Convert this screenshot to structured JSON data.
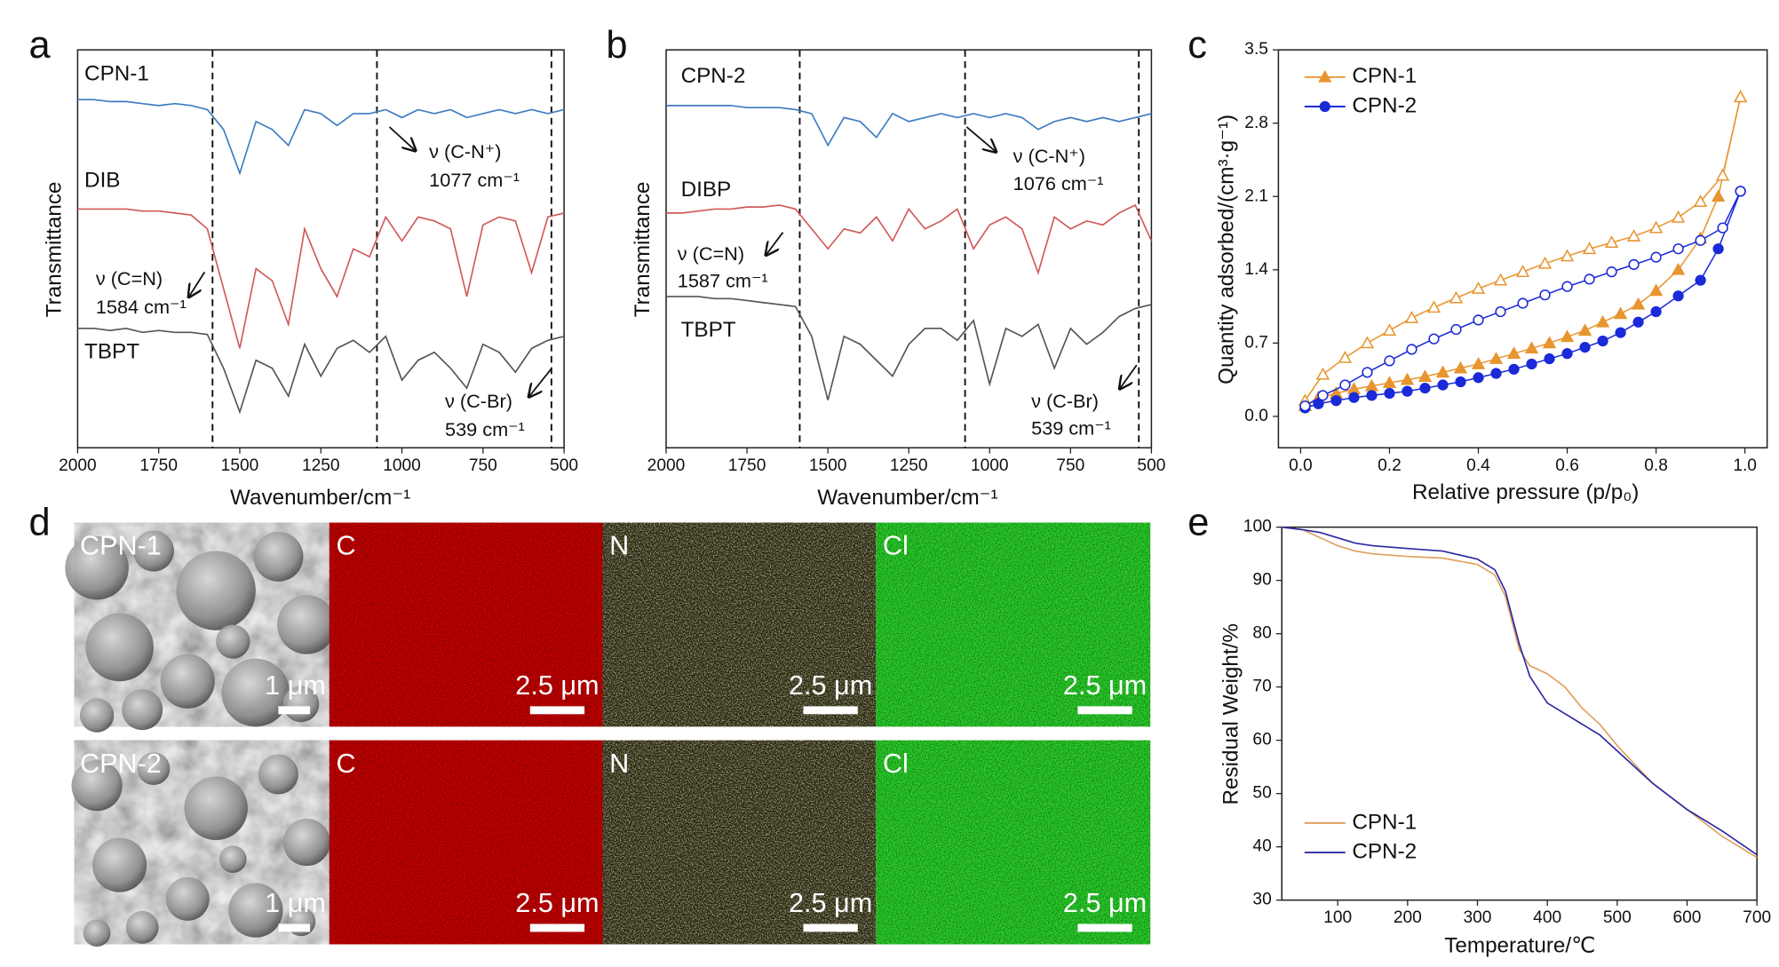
{
  "chart_data": [
    {
      "type": "line",
      "label": "a",
      "xlabel": "Wavenumber/cm⁻¹",
      "ylabel": "Transmittance",
      "xlim": [
        2000,
        500
      ],
      "xticks": [
        2000,
        1750,
        1500,
        1250,
        1000,
        750,
        500
      ],
      "ylim": [
        0,
        100
      ],
      "x": [
        2000,
        1950,
        1900,
        1850,
        1800,
        1750,
        1700,
        1650,
        1600,
        1550,
        1500,
        1450,
        1400,
        1350,
        1300,
        1250,
        1200,
        1150,
        1100,
        1050,
        1000,
        950,
        900,
        850,
        800,
        750,
        700,
        650,
        600,
        550,
        500
      ],
      "series": [
        {
          "name": "CPN-1",
          "color": "#3d7cc0",
          "values": [
            87.5,
            87.5,
            87,
            87,
            86.5,
            86,
            86.5,
            86,
            85,
            80,
            69,
            82,
            80,
            76,
            85,
            84,
            81,
            84,
            84,
            85,
            83,
            85,
            84,
            85,
            83,
            84,
            85,
            84,
            85,
            84,
            85
          ]
        },
        {
          "name": "DIB",
          "color": "#d05a5a",
          "values": [
            60,
            60,
            60,
            60,
            59.5,
            59.5,
            59,
            58.5,
            55,
            40,
            25,
            45,
            42,
            31,
            55,
            45,
            38,
            50,
            48,
            58,
            52,
            58,
            57,
            55,
            38,
            56,
            58,
            57,
            44,
            58,
            59
          ]
        },
        {
          "name": "TBPT",
          "color": "#555555",
          "values": [
            30,
            30,
            29.5,
            30,
            29,
            29.5,
            29,
            29,
            28.5,
            20,
            9,
            22,
            20,
            13,
            26,
            18,
            25,
            27,
            24,
            28,
            17,
            22,
            24,
            20,
            15,
            26,
            24,
            19,
            25,
            27,
            28
          ]
        }
      ],
      "vlines": [
        1584,
        1077,
        539
      ],
      "annotations": [
        [
          "ν (C-N⁺)",
          "1077 cm⁻¹"
        ],
        [
          "ν (C=N)",
          "1584 cm⁻¹"
        ],
        [
          "ν (C-Br)",
          "539 cm⁻¹"
        ]
      ]
    },
    {
      "type": "line",
      "label": "b",
      "xlabel": "Wavenumber/cm⁻¹",
      "ylabel": "Transmittance",
      "xlim": [
        2000,
        500
      ],
      "xticks": [
        2000,
        1750,
        1500,
        1250,
        1000,
        750,
        500
      ],
      "ylim": [
        0,
        100
      ],
      "x": [
        2000,
        1950,
        1900,
        1850,
        1800,
        1750,
        1700,
        1650,
        1600,
        1550,
        1500,
        1450,
        1400,
        1350,
        1300,
        1250,
        1200,
        1150,
        1100,
        1050,
        1000,
        950,
        900,
        850,
        800,
        750,
        700,
        650,
        600,
        550,
        500
      ],
      "series": [
        {
          "name": "CPN-2",
          "color": "#3d7cc0",
          "values": [
            86,
            86,
            86,
            86,
            86,
            85.5,
            85.5,
            85.5,
            85,
            84,
            76,
            83,
            82,
            78,
            84,
            82,
            83,
            84,
            83,
            84,
            83,
            84,
            83,
            80,
            82,
            83,
            82,
            83,
            82,
            83,
            84
          ]
        },
        {
          "name": "DIBP",
          "color": "#d05a5a",
          "values": [
            59,
            59,
            59.5,
            60,
            60,
            60.5,
            60.5,
            61,
            60,
            55,
            50,
            55,
            54,
            58,
            52,
            60,
            55,
            57,
            60,
            50,
            56,
            58,
            55,
            44,
            58,
            55,
            57,
            56,
            59,
            61,
            52
          ]
        },
        {
          "name": "TBPT",
          "color": "#555555",
          "values": [
            38,
            38,
            38,
            37.5,
            37.5,
            37,
            36.5,
            36,
            35.5,
            28,
            12,
            28,
            26,
            22,
            18,
            26,
            30,
            30,
            27,
            32,
            16,
            30,
            28,
            31,
            20,
            30,
            26,
            29,
            33,
            35,
            36
          ]
        }
      ],
      "vlines": [
        1587,
        1076,
        539
      ],
      "annotations": [
        [
          "ν (C-N⁺)",
          "1076 cm⁻¹"
        ],
        [
          "ν (C=N)",
          "1587 cm⁻¹"
        ],
        [
          "ν (C-Br)",
          "539 cm⁻¹"
        ]
      ]
    },
    {
      "type": "scatter",
      "label": "c",
      "xlabel": "Relative pressure (p/p₀)",
      "ylabel": "Quantity adsorbed/(cm³·g⁻¹)",
      "xlim": [
        -0.05,
        1.05
      ],
      "xticks": [
        {
          "value": 0,
          "label": "0.0"
        },
        0.2,
        0.4,
        0.6,
        0.8,
        {
          "value": 1,
          "label": "1.0"
        }
      ],
      "ylim": [
        -0.3,
        3.5
      ],
      "yticks": [
        {
          "value": 0,
          "label": "0.0"
        },
        0.7,
        1.4,
        2.1,
        2.8,
        3.5
      ],
      "legend": "upper left",
      "series": [
        {
          "name": "CPN-1",
          "color": "#e8952f",
          "marker": "triangle",
          "x": [
            0.01,
            0.04,
            0.08,
            0.12,
            0.16,
            0.2,
            0.24,
            0.28,
            0.32,
            0.36,
            0.4,
            0.44,
            0.48,
            0.52,
            0.56,
            0.6,
            0.64,
            0.68,
            0.72,
            0.76,
            0.8,
            0.85,
            0.9,
            0.94,
            0.99
          ],
          "values": [
            0.1,
            0.18,
            0.22,
            0.26,
            0.29,
            0.32,
            0.35,
            0.38,
            0.42,
            0.46,
            0.5,
            0.55,
            0.6,
            0.65,
            0.7,
            0.76,
            0.82,
            0.9,
            0.98,
            1.07,
            1.2,
            1.4,
            1.7,
            2.1,
            3.05
          ],
          "desorption_x": [
            0.99,
            0.95,
            0.9,
            0.85,
            0.8,
            0.75,
            0.7,
            0.65,
            0.6,
            0.55,
            0.5,
            0.45,
            0.4,
            0.35,
            0.3,
            0.25,
            0.2,
            0.15,
            0.1,
            0.05,
            0.01
          ],
          "desorption_values": [
            3.05,
            2.3,
            2.05,
            1.9,
            1.8,
            1.72,
            1.66,
            1.6,
            1.53,
            1.46,
            1.38,
            1.3,
            1.22,
            1.13,
            1.04,
            0.94,
            0.82,
            0.7,
            0.56,
            0.4,
            0.15
          ]
        },
        {
          "name": "CPN-2",
          "color": "#1a2ad8",
          "marker": "circle",
          "x": [
            0.01,
            0.04,
            0.08,
            0.12,
            0.16,
            0.2,
            0.24,
            0.28,
            0.32,
            0.36,
            0.4,
            0.44,
            0.48,
            0.52,
            0.56,
            0.6,
            0.64,
            0.68,
            0.72,
            0.76,
            0.8,
            0.85,
            0.9,
            0.94,
            0.99
          ],
          "values": [
            0.08,
            0.12,
            0.15,
            0.18,
            0.2,
            0.22,
            0.24,
            0.27,
            0.3,
            0.33,
            0.37,
            0.41,
            0.45,
            0.5,
            0.55,
            0.6,
            0.66,
            0.72,
            0.8,
            0.9,
            1.0,
            1.15,
            1.3,
            1.6,
            2.15
          ],
          "desorption_x": [
            0.99,
            0.95,
            0.9,
            0.85,
            0.8,
            0.75,
            0.7,
            0.65,
            0.6,
            0.55,
            0.5,
            0.45,
            0.4,
            0.35,
            0.3,
            0.25,
            0.2,
            0.15,
            0.1,
            0.05,
            0.01
          ],
          "desorption_values": [
            2.15,
            1.8,
            1.68,
            1.6,
            1.52,
            1.45,
            1.38,
            1.31,
            1.24,
            1.16,
            1.08,
            1.0,
            0.92,
            0.83,
            0.74,
            0.64,
            0.53,
            0.42,
            0.3,
            0.2,
            0.1
          ]
        }
      ]
    },
    {
      "type": "line",
      "label": "e",
      "xlabel": "Temperature/℃",
      "ylabel": "Residual Weight/%",
      "xlim": [
        20,
        700
      ],
      "xticks": [
        100,
        200,
        300,
        400,
        500,
        600,
        700
      ],
      "ylim": [
        30,
        100
      ],
      "yticks": [
        30,
        40,
        50,
        60,
        70,
        80,
        90,
        100
      ],
      "legend": "lower left",
      "x": [
        20,
        50,
        75,
        100,
        125,
        150,
        200,
        250,
        300,
        325,
        340,
        350,
        360,
        375,
        400,
        425,
        450,
        475,
        500,
        550,
        600,
        650,
        700
      ],
      "series": [
        {
          "name": "CPN-1",
          "color": "#e0a060",
          "values": [
            100,
            99.5,
            98,
            96.5,
            95.5,
            95,
            94.5,
            94.2,
            93,
            91,
            87,
            82,
            77,
            74,
            72.5,
            70,
            66,
            63,
            59,
            52,
            47,
            42,
            38
          ]
        },
        {
          "name": "CPN-2",
          "color": "#2a2aa0",
          "values": [
            100,
            99.5,
            99,
            98,
            97,
            96.5,
            96,
            95.5,
            94,
            92,
            88,
            83,
            78,
            72,
            67,
            65,
            63,
            61,
            58,
            52,
            47,
            43,
            38.5
          ]
        }
      ]
    }
  ],
  "micrographs": {
    "label": "d",
    "map_colors": [
      "#c80000",
      "#d4cc30",
      "#2ad02a"
    ],
    "rows": [
      {
        "sample": "CPN-1",
        "scale": "1 μm",
        "maps": [
          {
            "element": "C",
            "scale": "2.5 μm"
          },
          {
            "element": "N",
            "scale": "2.5 μm"
          },
          {
            "element": "Cl",
            "scale": "2.5 μm"
          }
        ]
      },
      {
        "sample": "CPN-2",
        "scale": "1 μm",
        "maps": [
          {
            "element": "C",
            "scale": "2.5 μm"
          },
          {
            "element": "N",
            "scale": "2.5 μm"
          },
          {
            "element": "Cl",
            "scale": "2.5 μm"
          }
        ]
      }
    ]
  }
}
